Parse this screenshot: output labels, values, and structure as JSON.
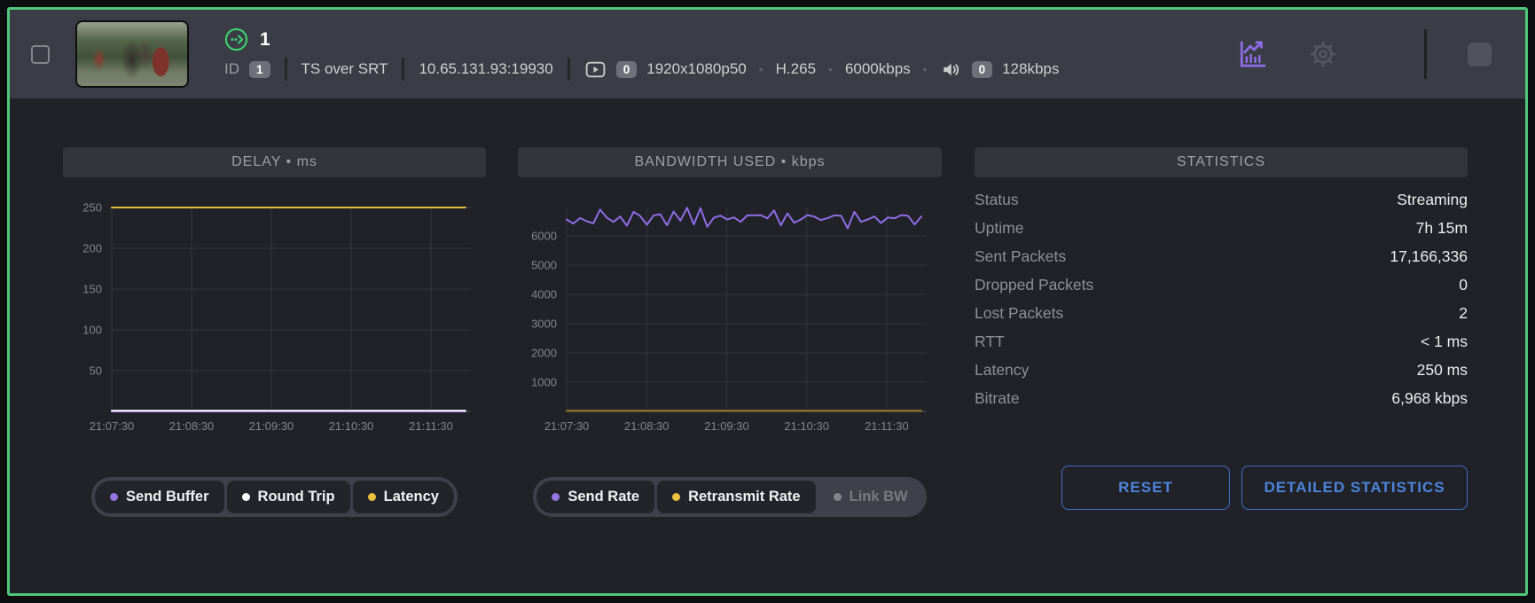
{
  "window": {
    "border_color": "#4ec97a",
    "accent_purple": "#8f6ce6",
    "accent_yellow": "#e5b93e",
    "accent_green": "#3fcf6e",
    "accent_blue": "#4d84dd"
  },
  "header": {
    "stream_number": "1",
    "id_label": "ID",
    "id_badge": "1",
    "protocol": "TS over SRT",
    "address": "10.65.131.93:19930",
    "video": {
      "track_count": "0",
      "resolution": "1920x1080p50",
      "codec": "H.265",
      "bitrate": "6000kbps"
    },
    "audio": {
      "track_count": "0",
      "bitrate": "128kbps"
    },
    "icons": [
      "streaming-status-icon",
      "video-play-icon",
      "speaker-icon",
      "chart-icon",
      "gear-icon",
      "stop-square-button"
    ]
  },
  "panels": {
    "delay": {
      "title": "DELAY • ms"
    },
    "bandwidth": {
      "title": "BANDWIDTH USED • kbps"
    },
    "statistics": {
      "title": "STATISTICS",
      "rows": [
        {
          "label": "Status",
          "value": "Streaming"
        },
        {
          "label": "Uptime",
          "value": "7h 15m"
        },
        {
          "label": "Sent Packets",
          "value": "17,166,336"
        },
        {
          "label": "Dropped Packets",
          "value": "0"
        },
        {
          "label": "Lost Packets",
          "value": "2"
        },
        {
          "label": "RTT",
          "value": "< 1 ms"
        },
        {
          "label": "Latency",
          "value": "250 ms"
        },
        {
          "label": "Bitrate",
          "value": "6,968 kbps"
        }
      ],
      "buttons": [
        {
          "label": "RESET"
        },
        {
          "label": "DETAILED STATISTICS"
        }
      ]
    }
  },
  "chart_data": [
    {
      "type": "line",
      "title": "DELAY • ms",
      "xlabel": "time",
      "ylabel": "ms",
      "x_ticks": [
        "21:07:30",
        "21:08:30",
        "21:09:30",
        "21:10:30",
        "21:11:30"
      ],
      "y_ticks": [
        50,
        100,
        150,
        200,
        250
      ],
      "ylim": [
        0,
        250
      ],
      "grid": true,
      "legend_position": "bottom",
      "series": [
        {
          "name": "Send Buffer",
          "color": "#9575e0",
          "values": [
            0,
            0
          ]
        },
        {
          "name": "Round Trip",
          "color": "#f5f6f7",
          "values": [
            1,
            1
          ]
        },
        {
          "name": "Latency",
          "color": "#e5b93e",
          "values": [
            250,
            250
          ]
        }
      ],
      "legend": [
        {
          "label": "Send Buffer",
          "color": "#9575e0",
          "enabled": true
        },
        {
          "label": "Round Trip",
          "color": "#ffffff",
          "enabled": true
        },
        {
          "label": "Latency",
          "color": "#ecc13f",
          "enabled": true
        }
      ]
    },
    {
      "type": "line",
      "title": "BANDWIDTH USED • kbps",
      "xlabel": "time",
      "ylabel": "kbps",
      "x_ticks": [
        "21:07:30",
        "21:08:30",
        "21:09:30",
        "21:10:30",
        "21:11:30"
      ],
      "y_ticks": [
        1000,
        2000,
        3000,
        4000,
        5000,
        6000
      ],
      "ylim": [
        0,
        6970
      ],
      "grid": true,
      "legend_position": "bottom",
      "series": [
        {
          "name": "Send Rate",
          "color": "#8f6ce6",
          "values": [
            6560,
            6420,
            6610,
            6500,
            6430,
            6900,
            6620,
            6480,
            6660,
            6350,
            6820,
            6680,
            6380,
            6700,
            6740,
            6360,
            6830,
            6520,
            6960,
            6390,
            6950,
            6310,
            6620,
            6690,
            6560,
            6630,
            6480,
            6700,
            6705,
            6710,
            6600,
            6870,
            6360,
            6770,
            6450,
            6560,
            6710,
            6660,
            6540,
            6610,
            6700,
            6690,
            6260,
            6820,
            6480,
            6560,
            6660,
            6440,
            6630,
            6600,
            6710,
            6690,
            6390,
            6660
          ]
        },
        {
          "name": "Retransmit Rate",
          "color": "#9c7d2c",
          "values": [
            25,
            25
          ]
        }
      ],
      "legend": [
        {
          "label": "Send Rate",
          "color": "#9575e0",
          "enabled": true
        },
        {
          "label": "Retransmit Rate",
          "color": "#ecc13f",
          "enabled": true
        },
        {
          "label": "Link BW",
          "color": "#83858c",
          "enabled": false
        }
      ]
    }
  ]
}
